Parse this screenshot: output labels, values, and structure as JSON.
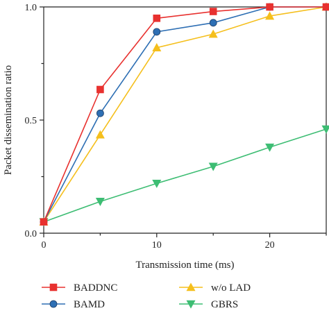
{
  "chart_data": {
    "type": "line",
    "xlabel": "Transmission time (ms)",
    "ylabel": "Packet dissemination ratio",
    "xlim": [
      0,
      25
    ],
    "ylim": [
      0,
      1
    ],
    "xticks": [
      0,
      10,
      20
    ],
    "yticks": [
      0,
      0.5,
      1
    ],
    "xtick_labels": [
      "0",
      "10",
      "20"
    ],
    "ytick_labels": [
      "0.0",
      "0.5",
      "1.0"
    ],
    "grid": false,
    "legend_position": "bottom",
    "x": [
      0,
      5,
      10,
      15,
      20,
      25
    ],
    "series": [
      {
        "name": "BADDNC",
        "values": [
          0.05,
          0.635,
          0.95,
          0.98,
          1.0,
          1.0
        ],
        "color": "#e8312f",
        "marker": "square"
      },
      {
        "name": "BAMD",
        "values": [
          0.05,
          0.53,
          0.89,
          0.93,
          1.0,
          1.0
        ],
        "color": "#2e6fb4",
        "marker": "circle"
      },
      {
        "name": "w/o LAD",
        "values": [
          0.05,
          0.435,
          0.82,
          0.88,
          0.96,
          1.0
        ],
        "color": "#f5bf1c",
        "marker": "triangle-up"
      },
      {
        "name": "GBRS",
        "values": [
          0.05,
          0.14,
          0.22,
          0.295,
          0.38,
          0.46
        ],
        "color": "#3dbd73",
        "marker": "triangle-down"
      }
    ]
  }
}
